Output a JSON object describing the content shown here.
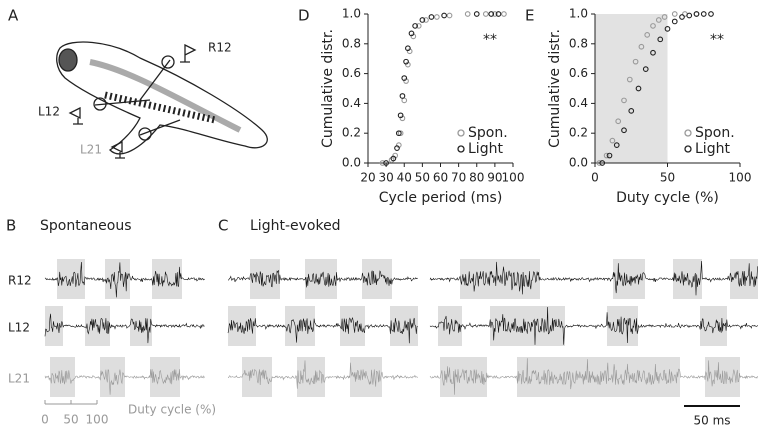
{
  "panels": {
    "A": {
      "letter": "A",
      "labels": [
        "R12",
        "L12",
        "L21"
      ]
    },
    "B": {
      "letter": "B",
      "title": "Spontaneous"
    },
    "C": {
      "letter": "C",
      "title": "Light-evoked"
    },
    "rows": [
      "R12",
      "L12",
      "L21"
    ],
    "duty_scale": {
      "ticks": [
        0,
        50,
        100
      ],
      "label": "Duty cycle (%)"
    },
    "time_scale": "50 ms"
  },
  "chart_data": [
    {
      "type": "ecdf",
      "panel": "D",
      "xlabel": "Cycle period (ms)",
      "ylabel": "Cumulative distr.",
      "annotation": "**",
      "xlim": [
        20,
        100
      ],
      "xticks": [
        20,
        30,
        40,
        50,
        60,
        70,
        80,
        90,
        100
      ],
      "ylim": [
        0,
        1
      ],
      "yticks": [
        {
          "value": 0,
          "label": "0.0"
        },
        0.2,
        0.4,
        0.6,
        0.8,
        {
          "value": 1,
          "label": "1.0"
        }
      ],
      "legend": "lower right",
      "series": [
        {
          "name": "Spon.",
          "color": "#999999",
          "x": [
            28,
            33,
            35,
            37,
            38,
            39,
            40,
            41,
            42,
            43,
            45,
            48,
            52,
            58,
            65,
            75,
            85,
            90,
            95
          ],
          "values": [
            0,
            0.02,
            0.05,
            0.12,
            0.2,
            0.3,
            0.42,
            0.55,
            0.66,
            0.75,
            0.85,
            0.92,
            0.96,
            0.98,
            0.99,
            1,
            1,
            1,
            1
          ]
        },
        {
          "name": "Light",
          "color": "#222222",
          "x": [
            30,
            34,
            36,
            37,
            38,
            39,
            40,
            41,
            42,
            44,
            46,
            50,
            55,
            62,
            80,
            88,
            92
          ],
          "values": [
            0,
            0.03,
            0.1,
            0.2,
            0.32,
            0.45,
            0.57,
            0.68,
            0.77,
            0.87,
            0.92,
            0.96,
            0.98,
            0.99,
            1,
            1,
            1
          ]
        }
      ]
    },
    {
      "type": "ecdf",
      "panel": "E",
      "xlabel": "Duty cycle (%)",
      "ylabel": "Cumulative distr.",
      "annotation": "**",
      "xlim": [
        0,
        100
      ],
      "xticks": [
        0,
        50,
        100
      ],
      "ylim": [
        0,
        1
      ],
      "yticks": [
        {
          "value": 0,
          "label": "0.0"
        },
        0.2,
        0.4,
        0.6,
        0.8,
        {
          "value": 1,
          "label": "1.0"
        }
      ],
      "shade": [
        0,
        50
      ],
      "legend": "lower right",
      "series": [
        {
          "name": "Spon.",
          "color": "#999999",
          "x": [
            3,
            8,
            12,
            16,
            20,
            24,
            28,
            32,
            36,
            40,
            44,
            48,
            55,
            62,
            70
          ],
          "values": [
            0,
            0.05,
            0.15,
            0.28,
            0.42,
            0.56,
            0.68,
            0.78,
            0.86,
            0.92,
            0.96,
            0.98,
            1,
            1,
            1
          ]
        },
        {
          "name": "Light",
          "color": "#222222",
          "x": [
            5,
            10,
            15,
            20,
            25,
            30,
            35,
            40,
            45,
            50,
            55,
            60,
            65,
            70,
            75,
            80
          ],
          "values": [
            0,
            0.05,
            0.12,
            0.22,
            0.35,
            0.5,
            0.63,
            0.74,
            0.83,
            0.9,
            0.95,
            0.98,
            0.99,
            1,
            1,
            1
          ]
        }
      ]
    }
  ]
}
